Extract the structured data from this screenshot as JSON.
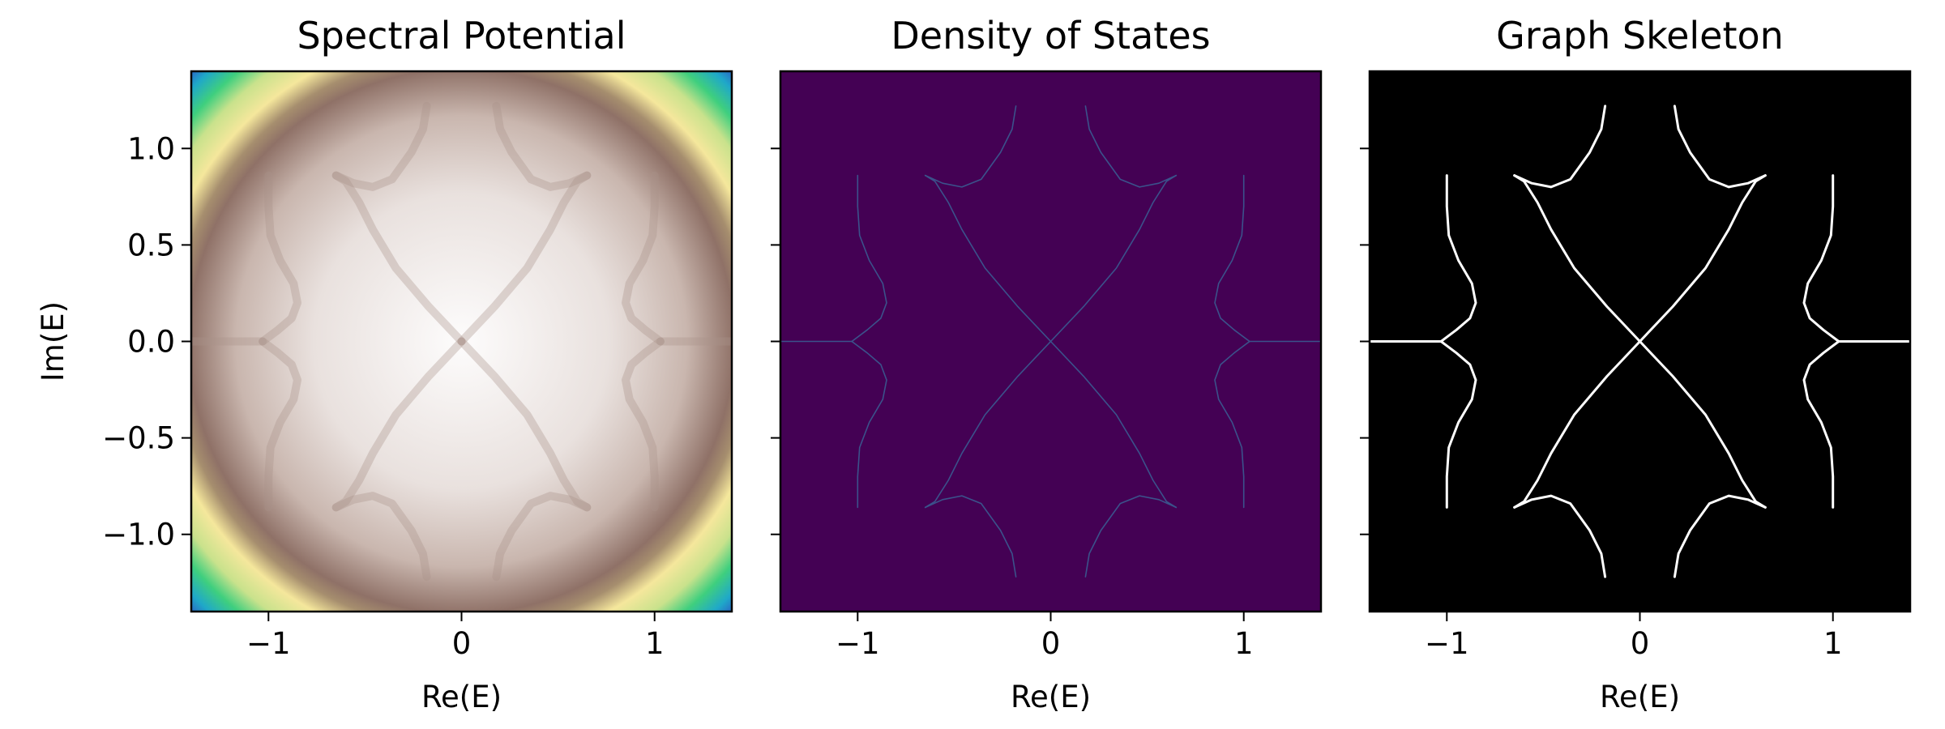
{
  "chart_data": [
    {
      "type": "heatmap",
      "title": "Spectral Potential",
      "xlabel": "Re(E)",
      "ylabel": "Im(E)",
      "xlim": [
        -1.4,
        1.4
      ],
      "ylim": [
        -1.4,
        1.4
      ],
      "xticks": [
        -1,
        0,
        1
      ],
      "xtick_labels": [
        "−1",
        "0",
        "1"
      ],
      "yticks": [
        1.0,
        0.5,
        0.0,
        -0.5,
        -1.0
      ],
      "ytick_labels": [
        "1.0",
        "0.5",
        "0.0",
        "−0.5",
        "−1.0"
      ],
      "colormap": "terrain",
      "background_color": "#ffffff",
      "grid": false
    },
    {
      "type": "heatmap",
      "title": "Density of States",
      "xlabel": "Re(E)",
      "xlim": [
        -1.4,
        1.4
      ],
      "ylim": [
        -1.4,
        1.4
      ],
      "xticks": [
        -1,
        0,
        1
      ],
      "xtick_labels": [
        "−1",
        "0",
        "1"
      ],
      "yticks": [
        1.0,
        0.5,
        0.0,
        -0.5,
        -1.0
      ],
      "colormap": "viridis",
      "background_color": "#440154",
      "line_color": "#3b528b",
      "grid": false
    },
    {
      "type": "heatmap",
      "title": "Graph Skeleton",
      "xlabel": "Re(E)",
      "xlim": [
        -1.4,
        1.4
      ],
      "ylim": [
        -1.4,
        1.4
      ],
      "xticks": [
        -1,
        0,
        1
      ],
      "xtick_labels": [
        "−1",
        "0",
        "1"
      ],
      "yticks": [
        1.0,
        0.5,
        0.0,
        -0.5,
        -1.0
      ],
      "colormap": "gray",
      "background_color": "#000000",
      "line_color": "#ffffff",
      "grid": false
    }
  ],
  "skeleton": {
    "curves": [
      [
        [
          -1.4,
          0.0
        ],
        [
          -1.03,
          0.0
        ]
      ],
      [
        [
          1.4,
          0.0
        ],
        [
          1.03,
          0.0
        ]
      ],
      [
        [
          -1.03,
          0.0
        ],
        [
          -0.95,
          0.06
        ],
        [
          -0.88,
          0.12
        ],
        [
          -0.85,
          0.2
        ],
        [
          -0.87,
          0.3
        ],
        [
          -0.94,
          0.42
        ],
        [
          -0.99,
          0.55
        ],
        [
          -1.0,
          0.7
        ],
        [
          -1.0,
          0.86
        ]
      ],
      [
        [
          -1.03,
          0.0
        ],
        [
          -0.95,
          -0.06
        ],
        [
          -0.88,
          -0.12
        ],
        [
          -0.85,
          -0.2
        ],
        [
          -0.87,
          -0.3
        ],
        [
          -0.94,
          -0.42
        ],
        [
          -0.99,
          -0.55
        ],
        [
          -1.0,
          -0.7
        ],
        [
          -1.0,
          -0.86
        ]
      ],
      [
        [
          1.03,
          0.0
        ],
        [
          0.95,
          0.06
        ],
        [
          0.88,
          0.12
        ],
        [
          0.85,
          0.2
        ],
        [
          0.87,
          0.3
        ],
        [
          0.94,
          0.42
        ],
        [
          0.99,
          0.55
        ],
        [
          1.0,
          0.7
        ],
        [
          1.0,
          0.86
        ]
      ],
      [
        [
          1.03,
          0.0
        ],
        [
          0.95,
          -0.06
        ],
        [
          0.88,
          -0.12
        ],
        [
          0.85,
          -0.2
        ],
        [
          0.87,
          -0.3
        ],
        [
          0.94,
          -0.42
        ],
        [
          0.99,
          -0.55
        ],
        [
          1.0,
          -0.7
        ],
        [
          1.0,
          -0.86
        ]
      ],
      [
        [
          0.0,
          0.0
        ],
        [
          0.17,
          0.18
        ],
        [
          0.34,
          0.38
        ],
        [
          0.46,
          0.58
        ],
        [
          0.53,
          0.72
        ],
        [
          0.6,
          0.83
        ],
        [
          0.65,
          0.86
        ]
      ],
      [
        [
          0.0,
          0.0
        ],
        [
          -0.17,
          0.18
        ],
        [
          -0.34,
          0.38
        ],
        [
          -0.46,
          0.58
        ],
        [
          -0.53,
          0.72
        ],
        [
          -0.6,
          0.83
        ],
        [
          -0.65,
          0.86
        ]
      ],
      [
        [
          0.0,
          0.0
        ],
        [
          0.17,
          -0.18
        ],
        [
          0.34,
          -0.38
        ],
        [
          0.46,
          -0.58
        ],
        [
          0.53,
          -0.72
        ],
        [
          0.6,
          -0.83
        ],
        [
          0.65,
          -0.86
        ]
      ],
      [
        [
          0.0,
          0.0
        ],
        [
          -0.17,
          -0.18
        ],
        [
          -0.34,
          -0.38
        ],
        [
          -0.46,
          -0.58
        ],
        [
          -0.53,
          -0.72
        ],
        [
          -0.6,
          -0.83
        ],
        [
          -0.65,
          -0.86
        ]
      ],
      [
        [
          0.18,
          1.22
        ],
        [
          0.2,
          1.1
        ],
        [
          0.26,
          0.98
        ],
        [
          0.36,
          0.84
        ],
        [
          0.46,
          0.8
        ],
        [
          0.56,
          0.82
        ],
        [
          0.65,
          0.86
        ]
      ],
      [
        [
          -0.18,
          1.22
        ],
        [
          -0.2,
          1.1
        ],
        [
          -0.26,
          0.98
        ],
        [
          -0.36,
          0.84
        ],
        [
          -0.46,
          0.8
        ],
        [
          -0.56,
          0.82
        ],
        [
          -0.65,
          0.86
        ]
      ],
      [
        [
          0.18,
          -1.22
        ],
        [
          0.2,
          -1.1
        ],
        [
          0.26,
          -0.98
        ],
        [
          0.36,
          -0.84
        ],
        [
          0.46,
          -0.8
        ],
        [
          0.56,
          -0.82
        ],
        [
          0.65,
          -0.86
        ]
      ],
      [
        [
          -0.18,
          -1.22
        ],
        [
          -0.2,
          -1.1
        ],
        [
          -0.26,
          -0.98
        ],
        [
          -0.36,
          -0.84
        ],
        [
          -0.46,
          -0.8
        ],
        [
          -0.56,
          -0.82
        ],
        [
          -0.65,
          -0.86
        ]
      ]
    ]
  }
}
